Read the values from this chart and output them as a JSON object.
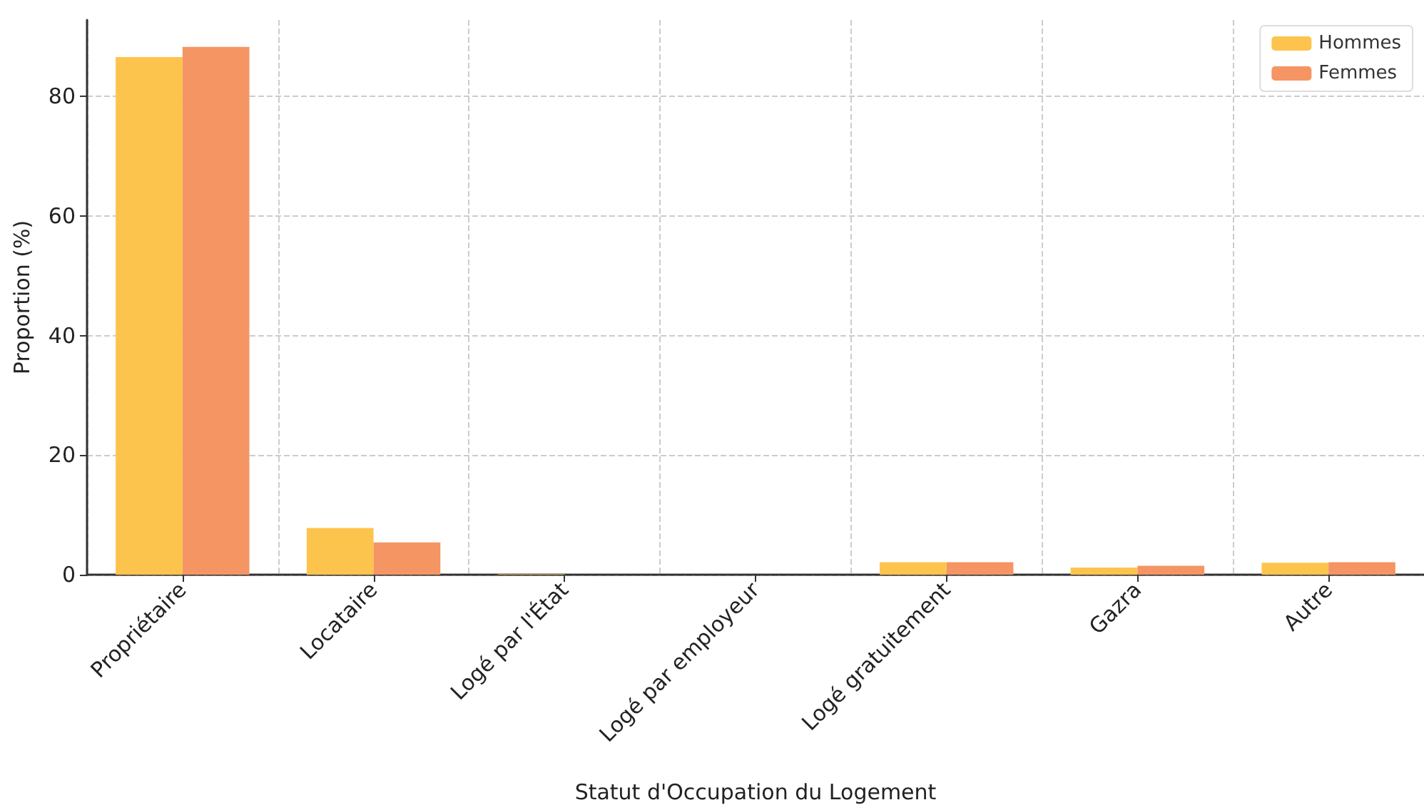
{
  "chart_data": {
    "type": "bar",
    "xlabel": "Statut d'Occupation du Logement",
    "ylabel": "Proportion (%)",
    "categories": [
      "Propriétaire",
      "Locataire",
      "Logé par l'État",
      "Logé par employeur",
      "Logé gratuitement",
      "Gazra",
      "Autre"
    ],
    "series": [
      {
        "name": "Hommes",
        "color": "#fdc44d",
        "values": [
          86.6,
          7.8,
          0.1,
          0,
          2.1,
          1.2,
          2.0
        ]
      },
      {
        "name": "Femmes",
        "color": "#f49563",
        "values": [
          88.3,
          5.4,
          0,
          0,
          2.1,
          1.5,
          2.1
        ]
      }
    ],
    "ylim": [
      0,
      92.8
    ],
    "yticks": [
      0,
      20,
      40,
      60,
      80
    ],
    "grid": true,
    "legend": "top right"
  }
}
